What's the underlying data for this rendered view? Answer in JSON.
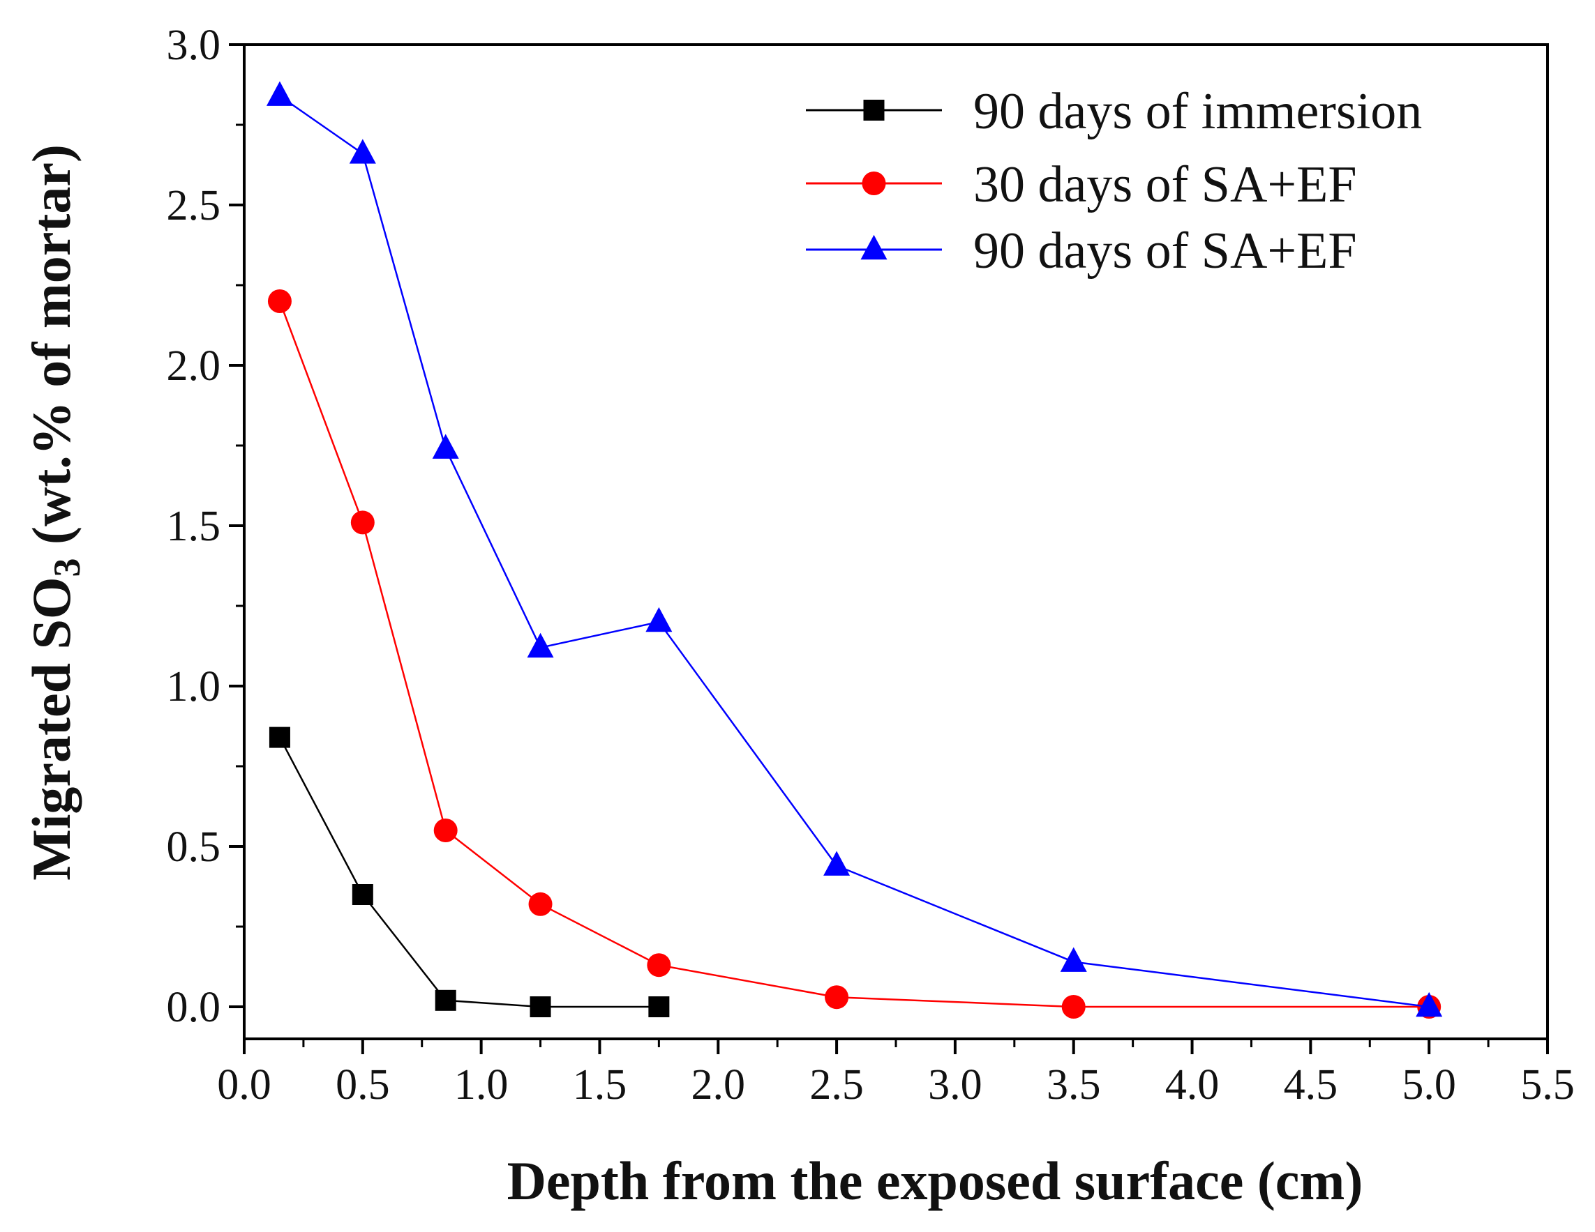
{
  "chart_data": {
    "type": "line",
    "title": "",
    "xlabel": "Depth from the exposed surface (cm)",
    "ylabel_parts": [
      "Migrated SO",
      "3",
      " (wt.% of mortar)"
    ],
    "ylabel": "Migrated SO3 (wt.% of mortar)",
    "xlim": [
      0.0,
      5.5
    ],
    "ylim": [
      -0.1,
      3.0
    ],
    "x_ticks": [
      0.0,
      0.5,
      1.0,
      1.5,
      2.0,
      2.5,
      3.0,
      3.5,
      4.0,
      4.5,
      5.0,
      5.5
    ],
    "x_tick_labels": [
      "0.0",
      "0.5",
      "1.0",
      "1.5",
      "2.0",
      "2.5",
      "3.0",
      "3.5",
      "4.0",
      "4.5",
      "5.0",
      "5.5"
    ],
    "y_ticks": [
      0.0,
      0.5,
      1.0,
      1.5,
      2.0,
      2.5,
      3.0
    ],
    "y_tick_labels": [
      "0.0",
      "0.5",
      "1.0",
      "1.5",
      "2.0",
      "2.5",
      "3.0"
    ],
    "grid": false,
    "legend_position": "top-right",
    "series": [
      {
        "name": "90 days of immersion",
        "color": "#000000",
        "marker": "square",
        "x": [
          0.15,
          0.5,
          0.85,
          1.25,
          1.75
        ],
        "y": [
          0.84,
          0.35,
          0.02,
          0.0,
          0.0
        ]
      },
      {
        "name": "30 days of SA+EF",
        "color": "#ff0000",
        "marker": "circle",
        "x": [
          0.15,
          0.5,
          0.85,
          1.25,
          1.75,
          2.5,
          3.5,
          5.0
        ],
        "y": [
          2.2,
          1.51,
          0.55,
          0.32,
          0.13,
          0.03,
          0.0,
          0.0
        ]
      },
      {
        "name": "90 days of SA+EF",
        "color": "#0000ff",
        "marker": "triangle",
        "x": [
          0.15,
          0.5,
          0.85,
          1.25,
          1.75,
          2.5,
          3.5,
          5.0
        ],
        "y": [
          2.84,
          2.66,
          1.74,
          1.12,
          1.2,
          0.44,
          0.14,
          0.0
        ]
      }
    ]
  }
}
